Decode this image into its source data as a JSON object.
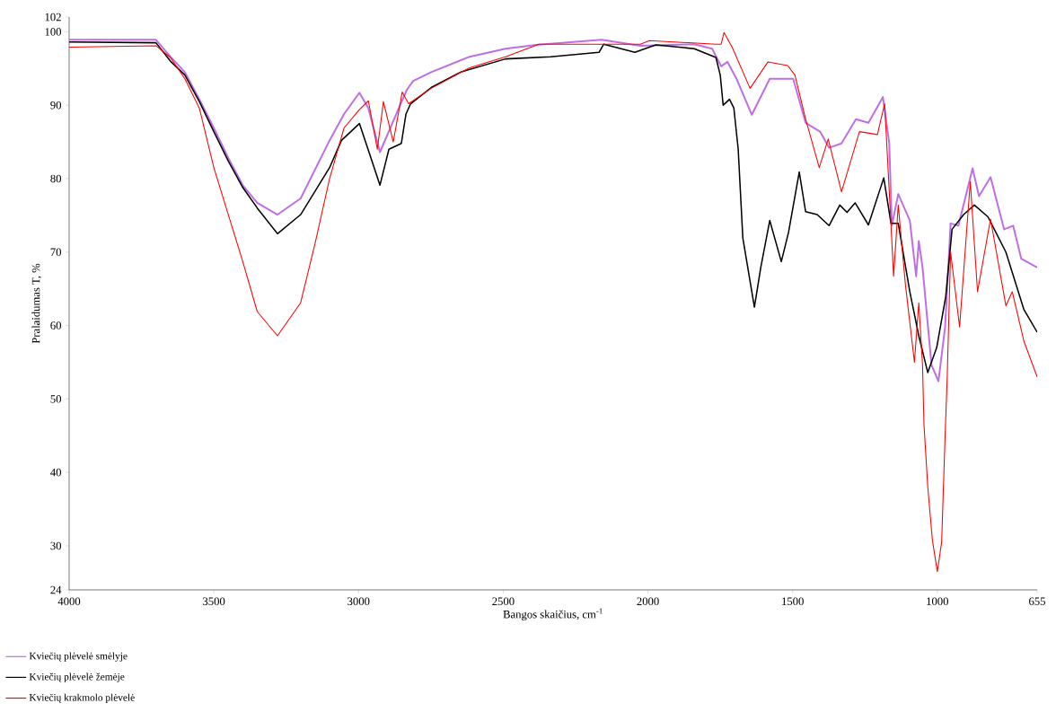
{
  "chart_data": {
    "type": "line",
    "xlabel": "Bangos skaičius, cm$^{-1}$",
    "ylabel": "Pralaidumas T, %",
    "xlim": [
      4000,
      655
    ],
    "ylim": [
      24,
      102
    ],
    "xticks": [
      4000,
      3500,
      3000,
      2500,
      2000,
      1500,
      1000,
      655
    ],
    "yticks": [
      24,
      30,
      40,
      50,
      60,
      70,
      80,
      90,
      100,
      102
    ],
    "grid": false,
    "legend": "bottom left",
    "marker": "none",
    "line_style": "solid",
    "series": [
      {
        "name": "Kviečių plėvelė smėlyje",
        "color": "#bf6ee6",
        "x": [
          4000,
          3700,
          3650,
          3600,
          3550,
          3500,
          3450,
          3400,
          3350,
          3280,
          3200,
          3100,
          3050,
          2997,
          2966,
          2926,
          2864,
          2833,
          2811,
          2749,
          2616,
          2492,
          2386,
          2160,
          2026,
          1840,
          1778,
          1747,
          1725,
          1694,
          1641,
          1579,
          1498,
          1455,
          1405,
          1374,
          1331,
          1281,
          1238,
          1188,
          1166,
          1157,
          1135,
          1095,
          1073,
          1064,
          1051,
          1020,
          996,
          973,
          954,
          927,
          878,
          856,
          816,
          769,
          738,
          710,
          655
        ],
        "values": [
          98.9,
          98.9,
          96.6,
          94.5,
          90.8,
          86.9,
          82.8,
          79.1,
          76.7,
          75.1,
          77.3,
          85.2,
          88.8,
          91.7,
          89.6,
          83.6,
          89.3,
          92.1,
          93.3,
          94.5,
          96.6,
          97.7,
          98.2,
          98.9,
          98.1,
          98.3,
          97.7,
          95.3,
          95.9,
          93.6,
          88.7,
          93.6,
          93.6,
          87.6,
          86.4,
          84.2,
          84.8,
          88.1,
          87.6,
          91.1,
          84.8,
          73.6,
          77.9,
          74.3,
          66.7,
          71.5,
          67.9,
          54.6,
          52.4,
          59.8,
          73.9,
          73.6,
          81.4,
          77.6,
          80.2,
          73.1,
          73.6,
          69.1,
          67.9
        ]
      },
      {
        "name": "Kviečių plėvelė žemėje",
        "color": "#000000",
        "x": [
          4000,
          3700,
          3650,
          3600,
          3550,
          3500,
          3450,
          3400,
          3350,
          3280,
          3200,
          3100,
          3059,
          2997,
          2957,
          2926,
          2895,
          2852,
          2836,
          2820,
          2749,
          2647,
          2492,
          2336,
          2169,
          2153,
          2045,
          1973,
          1840,
          1765,
          1750,
          1740,
          1718,
          1703,
          1688,
          1672,
          1632,
          1610,
          1579,
          1539,
          1514,
          1477,
          1455,
          1415,
          1374,
          1337,
          1312,
          1284,
          1238,
          1185,
          1160,
          1135,
          1095,
          1064,
          1033,
          1002,
          971,
          949,
          909,
          872,
          825,
          763,
          701,
          655
        ],
        "values": [
          98.6,
          98.5,
          96.0,
          94.1,
          90.5,
          86.4,
          82.4,
          78.8,
          76.0,
          72.5,
          75.1,
          81.5,
          85.2,
          87.5,
          82.8,
          79.1,
          84.0,
          84.8,
          88.8,
          90.2,
          92.4,
          94.5,
          96.3,
          96.6,
          97.2,
          98.3,
          97.2,
          98.2,
          97.7,
          96.5,
          94.1,
          90.0,
          90.8,
          89.6,
          84.0,
          71.9,
          62.5,
          67.9,
          74.3,
          68.7,
          72.7,
          80.9,
          75.5,
          75.1,
          73.6,
          76.4,
          75.4,
          76.7,
          73.7,
          80.1,
          73.9,
          73.9,
          64.6,
          58.6,
          53.6,
          57.0,
          63.9,
          73.1,
          75.1,
          76.4,
          74.8,
          70.0,
          62.2,
          59.1
        ]
      },
      {
        "name": "Kviečių krakmolo plėvelė",
        "color": "#ff0000",
        "x": [
          4000,
          3700,
          3650,
          3600,
          3550,
          3500,
          3450,
          3400,
          3350,
          3280,
          3200,
          3150,
          3100,
          3050,
          2997,
          2966,
          2935,
          2914,
          2880,
          2849,
          2827,
          2749,
          2616,
          2492,
          2377,
          2026,
          1995,
          1765,
          1747,
          1737,
          1709,
          1647,
          1585,
          1517,
          1492,
          1455,
          1408,
          1377,
          1331,
          1269,
          1207,
          1182,
          1163,
          1151,
          1135,
          1110,
          1079,
          1064,
          1051,
          1046,
          1033,
          1017,
          1000,
          985,
          973,
          966,
          954,
          923,
          886,
          861,
          816,
          763,
          741,
          701,
          655
        ],
        "values": [
          97.9,
          98.1,
          96.5,
          93.6,
          89.6,
          81.5,
          75.1,
          68.7,
          61.9,
          58.6,
          63.1,
          71.2,
          80.0,
          86.9,
          89.4,
          90.6,
          84.0,
          90.5,
          85.0,
          91.8,
          90.2,
          92.3,
          95.1,
          96.6,
          98.3,
          98.3,
          98.8,
          98.3,
          98.3,
          99.9,
          97.9,
          92.3,
          95.9,
          95.4,
          94.1,
          88.1,
          81.5,
          85.4,
          78.2,
          86.4,
          86.0,
          90.2,
          76.0,
          66.7,
          76.4,
          65.5,
          55.0,
          63.1,
          54.6,
          46.5,
          38.1,
          30.8,
          26.5,
          30.5,
          45.0,
          52.6,
          70.0,
          59.8,
          79.6,
          64.6,
          74.5,
          62.7,
          64.6,
          57.9,
          53.0
        ]
      }
    ]
  }
}
